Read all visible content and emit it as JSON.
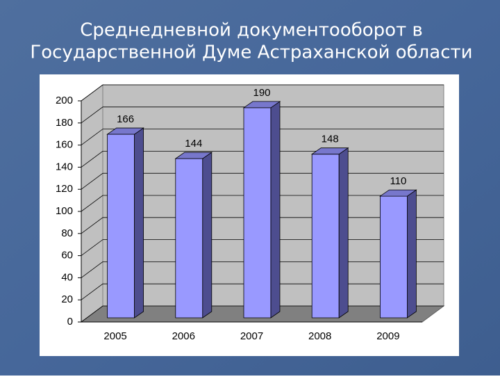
{
  "chart_data": {
    "type": "bar3d",
    "title": [
      "Среднедневной  документооборот в",
      "Государственной Думе Астраханской области"
    ],
    "categories": [
      "2005",
      "2006",
      "2007",
      "2008",
      "2009"
    ],
    "values": [
      166,
      144,
      190,
      148,
      110
    ],
    "color": "#9999ff",
    "ylim": [
      0,
      200
    ],
    "yticks": [
      0,
      20,
      40,
      60,
      80,
      100,
      120,
      140,
      160,
      180,
      200
    ],
    "grid": true
  }
}
